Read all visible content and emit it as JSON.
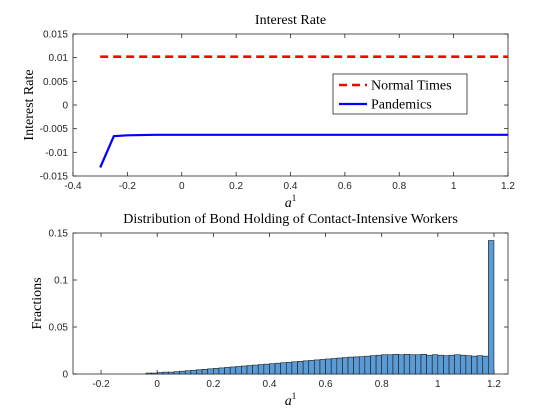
{
  "chart_data": [
    {
      "type": "line",
      "title": "Interest Rate",
      "xlabel": "a",
      "xlabel_sup": "1",
      "ylabel": "Interest Rate",
      "xlim": [
        -0.4,
        1.2
      ],
      "ylim": [
        -0.015,
        0.015
      ],
      "xticks": [
        "-0.4",
        "-0.2",
        "0",
        "0.2",
        "0.4",
        "0.6",
        "0.8",
        "1",
        "1.2"
      ],
      "yticks": [
        "-0.015",
        "-0.01",
        "-0.005",
        "0",
        "0.005",
        "0.01",
        "0.015"
      ],
      "legend_position": "right",
      "grid": false,
      "series": [
        {
          "name": "Normal Times",
          "color": "#ff0000",
          "style": "dashed",
          "x": [
            -0.3,
            1.2
          ],
          "y": [
            0.0102,
            0.0102
          ]
        },
        {
          "name": "Pandemics",
          "color": "#0000ff",
          "style": "solid",
          "x": [
            -0.3,
            -0.25,
            -0.2,
            -0.1,
            0.0,
            0.2,
            0.4,
            0.6,
            0.8,
            1.0,
            1.2
          ],
          "y": [
            -0.0132,
            -0.0066,
            -0.0064,
            -0.0063,
            -0.0063,
            -0.0063,
            -0.0063,
            -0.0063,
            -0.0063,
            -0.0063,
            -0.0063
          ]
        }
      ]
    },
    {
      "type": "bar",
      "title": "Distribution of Bond Holding of Contact-Intensive Workers",
      "xlabel": "a",
      "xlabel_sup": "1",
      "ylabel": "Fractions",
      "xlim": [
        -0.3,
        1.25
      ],
      "ylim": [
        0,
        0.15
      ],
      "xticks": [
        "-0.2",
        "0",
        "0.2",
        "0.4",
        "0.6",
        "0.8",
        "1",
        "1.2"
      ],
      "yticks": [
        "0",
        "0.05",
        "0.1",
        "0.15"
      ],
      "bar_color": "#5b9bd5",
      "bar_width": 0.02,
      "x": [
        -0.03,
        -0.01,
        0.01,
        0.03,
        0.05,
        0.07,
        0.09,
        0.11,
        0.13,
        0.15,
        0.17,
        0.19,
        0.21,
        0.23,
        0.25,
        0.27,
        0.29,
        0.31,
        0.33,
        0.35,
        0.37,
        0.39,
        0.41,
        0.43,
        0.45,
        0.47,
        0.49,
        0.51,
        0.53,
        0.55,
        0.57,
        0.59,
        0.61,
        0.63,
        0.65,
        0.67,
        0.69,
        0.71,
        0.73,
        0.75,
        0.77,
        0.79,
        0.81,
        0.83,
        0.85,
        0.87,
        0.89,
        0.91,
        0.93,
        0.95,
        0.97,
        0.99,
        1.01,
        1.03,
        1.05,
        1.07,
        1.09,
        1.11,
        1.13,
        1.15,
        1.17,
        1.19
      ],
      "values": [
        0.001,
        0.001,
        0.0015,
        0.002,
        0.002,
        0.0025,
        0.003,
        0.0035,
        0.004,
        0.0045,
        0.005,
        0.0055,
        0.006,
        0.0065,
        0.007,
        0.0075,
        0.008,
        0.0085,
        0.009,
        0.0095,
        0.01,
        0.0105,
        0.011,
        0.0115,
        0.012,
        0.0125,
        0.013,
        0.0135,
        0.014,
        0.0145,
        0.015,
        0.0155,
        0.016,
        0.0165,
        0.017,
        0.0175,
        0.018,
        0.0182,
        0.0185,
        0.019,
        0.0195,
        0.02,
        0.0205,
        0.0205,
        0.021,
        0.0205,
        0.021,
        0.0205,
        0.0205,
        0.021,
        0.02,
        0.0205,
        0.02,
        0.0195,
        0.02,
        0.0205,
        0.02,
        0.0195,
        0.019,
        0.0195,
        0.019,
        0.142
      ]
    }
  ]
}
